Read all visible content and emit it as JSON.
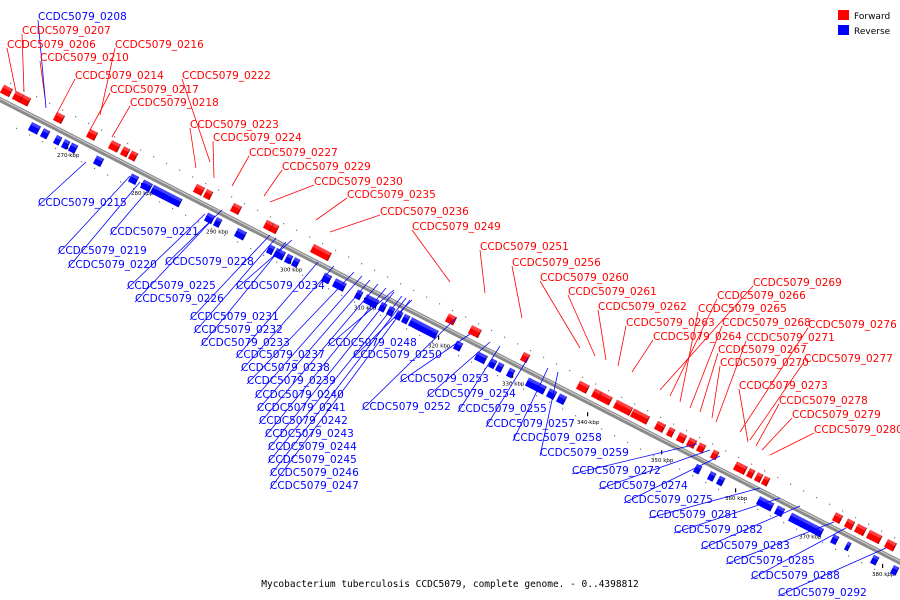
{
  "caption": "Mycobacterium tuberculosis CCDC5079, complete genome. - 0..4398812",
  "legend": {
    "forward": {
      "label": "Forward",
      "color": "#ff0000"
    },
    "reverse": {
      "label": "Reverse",
      "color": "#0000ff"
    }
  },
  "ticks": [
    "270 kbp",
    "280 kbp",
    "290 kbp",
    "300 kbp",
    "310 kbp",
    "320 kbp",
    "330 kbp",
    "340 kbp",
    "350 kbp",
    "360 kbp",
    "370 kbp",
    "380 kbp"
  ],
  "forward_genes": [
    "CCDC5079_0207",
    "CCDC5079_0206",
    "CCDC5079_0210",
    "CCDC5079_0216",
    "CCDC5079_0214",
    "CCDC5079_0217",
    "CCDC5079_0218",
    "CCDC5079_0222",
    "CCDC5079_0223",
    "CCDC5079_0224",
    "CCDC5079_0227",
    "CCDC5079_0229",
    "CCDC5079_0230",
    "CCDC5079_0235",
    "CCDC5079_0236",
    "CCDC5079_0249",
    "CCDC5079_0251",
    "CCDC5079_0256",
    "CCDC5079_0260",
    "CCDC5079_0261",
    "CCDC5079_0262",
    "CCDC5079_0263",
    "CCDC5079_0264",
    "CCDC5079_0269",
    "CCDC5079_0266",
    "CCDC5079_0265",
    "CCDC5079_0268",
    "CCDC5079_0267",
    "CCDC5079_0270",
    "CCDC5079_0276",
    "CCDC5079_0271",
    "CCDC5079_0277",
    "CCDC5079_0273",
    "CCDC5079_0278",
    "CCDC5079_0279",
    "CCDC5079_0280"
  ],
  "reverse_genes": [
    "CCDC5079_0208",
    "CCDC5079_0215",
    "CCDC5079_0221",
    "CCDC5079_0219",
    "CCDC5079_0220",
    "CCDC5079_0228",
    "CCDC5079_0225",
    "CCDC5079_0226",
    "CCDC5079_0234",
    "CCDC5079_0231",
    "CCDC5079_0232",
    "CCDC5079_0233",
    "CCDC5079_0248",
    "CCDC5079_0237",
    "CCDC5079_0250",
    "CCDC5079_0238",
    "CCDC5079_0239",
    "CCDC5079_0240",
    "CCDC5079_0241",
    "CCDC5079_0242",
    "CCDC5079_0243",
    "CCDC5079_0244",
    "CCDC5079_0245",
    "CCDC5079_0246",
    "CCDC5079_0247",
    "CCDC5079_0253",
    "CCDC5079_0254",
    "CCDC5079_0252",
    "CCDC5079_0255",
    "CCDC5079_0257",
    "CCDC5079_0258",
    "CCDC5079_0259",
    "CCDC5079_0272",
    "CCDC5079_0274",
    "CCDC5079_0275",
    "CCDC5079_0281",
    "CCDC5079_0282",
    "CCDC5079_0283",
    "CCDC5079_0285",
    "CCDC5079_0288",
    "CCDC5079_0292"
  ]
}
